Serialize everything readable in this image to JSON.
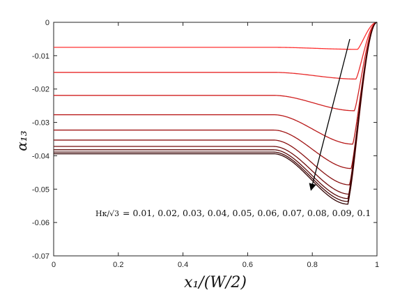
{
  "chart_data": {
    "type": "line",
    "xlabel": "x₁/(W/2)",
    "ylabel": "α₁₃",
    "xlim": [
      0,
      1
    ],
    "ylim": [
      -0.07,
      0
    ],
    "xticks": [
      "0",
      "0.2",
      "0.4",
      "0.6",
      "0.8",
      "1"
    ],
    "yticks": [
      "0",
      "-0.01",
      "-0.02",
      "-0.03",
      "-0.04",
      "-0.05",
      "-0.06",
      "-0.07"
    ],
    "grid": false,
    "annotation": {
      "text_prefix": "Hκ/√3",
      "text_values": "= 0.01, 0.02, 0.03, 0.04, 0.05, 0.06, 0.07, 0.08, 0.09, 0.1",
      "arrow": "diagonal arrow pointing down-left across curves indicating increasing Hκ/√3"
    },
    "series": [
      {
        "plateau": -0.0075,
        "min_x": 0.94,
        "min_y": -0.0081,
        "color": "#ff3030"
      },
      {
        "plateau": -0.015,
        "min_x": 0.935,
        "min_y": -0.017,
        "color": "#e82828"
      },
      {
        "plateau": -0.0219,
        "min_x": 0.93,
        "min_y": -0.0265,
        "color": "#d02020"
      },
      {
        "plateau": -0.0277,
        "min_x": 0.925,
        "min_y": -0.0365,
        "color": "#b81818"
      },
      {
        "plateau": -0.0323,
        "min_x": 0.92,
        "min_y": -0.0438,
        "color": "#a01414"
      },
      {
        "plateau": -0.0353,
        "min_x": 0.915,
        "min_y": -0.0487,
        "color": "#881010"
      },
      {
        "plateau": -0.0372,
        "min_x": 0.915,
        "min_y": -0.0515,
        "color": "#700c0c"
      },
      {
        "plateau": -0.0382,
        "min_x": 0.91,
        "min_y": -0.0528,
        "color": "#5a0808"
      },
      {
        "plateau": -0.0389,
        "min_x": 0.91,
        "min_y": -0.0537,
        "color": "#440404"
      },
      {
        "plateau": -0.0394,
        "min_x": 0.91,
        "min_y": -0.0545,
        "color": "#300000"
      }
    ]
  }
}
